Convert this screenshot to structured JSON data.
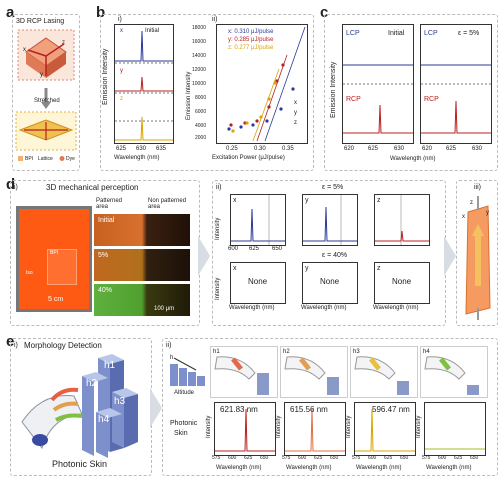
{
  "panels": {
    "a": {
      "letter": "a",
      "title": "3D RCP Lasing",
      "axes": [
        "x",
        "y",
        "z"
      ],
      "arrow_label": "Stretched",
      "legend": [
        "BPI",
        "Lattice",
        "Dye"
      ]
    },
    "b": {
      "letter": "b",
      "sub_i": "i)",
      "sub_ii": "ii)",
      "initial": "Initial",
      "traces": [
        "x",
        "y",
        "z"
      ],
      "xlabel_i": "Wavelength (nm)",
      "xticks_i": [
        "625",
        "630",
        "635"
      ],
      "ylabel": "Emission Intensity",
      "legend_ii": [
        {
          "text": "x: 0.310 μJ/pulse",
          "color": "#2a3a9a"
        },
        {
          "text": "y: 0.285 μJ/pulse",
          "color": "#b82020"
        },
        {
          "text": "z: 0.277 μJ/pulse",
          "color": "#d9a400"
        }
      ],
      "xlabel_ii": "Excitation Power (μJ/pulse)",
      "xticks_ii": [
        "0.25",
        "0.30",
        "0.35"
      ],
      "yticks_ii": [
        "2000",
        "4000",
        "6000",
        "8000",
        "10000",
        "12000",
        "14000",
        "16000",
        "18000"
      ],
      "series_labels": [
        "x",
        "y",
        "z"
      ]
    },
    "c": {
      "letter": "c",
      "lcp": "LCP",
      "rcp": "RCP",
      "initial": "Initial",
      "strain": "ε = 5%",
      "ylabel": "Emission Intensity",
      "xlabel": "Wavelength (nm)",
      "xticks_left": [
        "620",
        "625",
        "630"
      ],
      "xticks_right": [
        "620",
        "625",
        "630"
      ]
    },
    "d": {
      "letter": "d",
      "sub_i": "i)",
      "title": "3D mechanical perception",
      "patterned": "Patterned area",
      "nonpatterned": "Non patterned area",
      "rows": [
        "Initial",
        "5%",
        "40%"
      ],
      "scale1": "5 cm",
      "scale2": "100 μm",
      "bpi": "BPI",
      "iso": "Iso",
      "sub_ii": "ii)",
      "eps5": "ε = 5%",
      "eps40": "ε = 40%",
      "axes": [
        "x",
        "y",
        "z"
      ],
      "none": "None",
      "ylabel": "Intensity",
      "xlabel": "Wavelength (nm)",
      "xticks": [
        "600",
        "625",
        "650"
      ],
      "sub_iii": "iii)"
    },
    "e": {
      "letter": "e",
      "sub_i": "i)",
      "title": "Morphology Detection",
      "blocks": [
        "h1",
        "h2",
        "h3",
        "h4"
      ],
      "skin": "Photonic Skin",
      "sub_ii": "ii)",
      "altitude": "Altitude",
      "h": "h",
      "row_label_1": "Photonic",
      "row_label_2": "Skin",
      "fingers": [
        "h1",
        "h2",
        "h3",
        "h4"
      ],
      "peaks": [
        "621.83 nm",
        "615.56 nm",
        "596.47 nm"
      ],
      "ylabel": "Intensity",
      "xlabel": "Wavelength (nm)",
      "xticks": [
        "575",
        "600",
        "625",
        "650"
      ]
    }
  },
  "colors": {
    "blue": "#2a3a9a",
    "red": "#b82020",
    "yellow": "#d9a400",
    "green": "#a0c020",
    "orange": "#e8a04a"
  }
}
